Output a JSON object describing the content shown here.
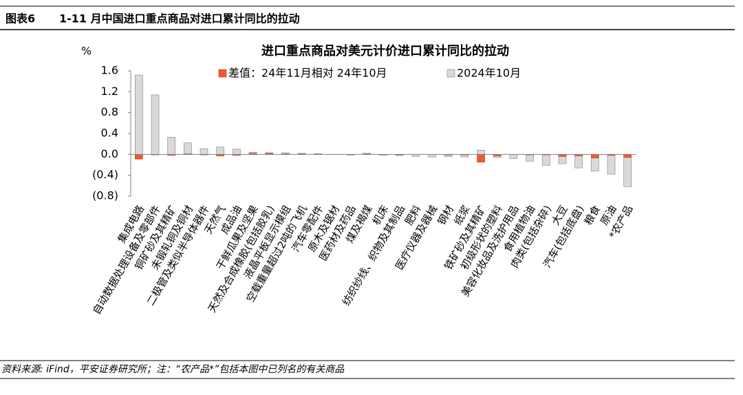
{
  "header": {
    "label": "图表6",
    "title": "1-11 月中国进口重点商品对进口累计同比的拉动"
  },
  "chart_data": {
    "type": "bar",
    "title": "进口重点商品对美元计价进口累计同比的拉动",
    "y_unit": "%",
    "categories": [
      "集成电路",
      "自动数据处理设备及零部件",
      "铜矿砂及其精矿",
      "未锻轧铜及铜材",
      "二极管及类似半导体器件",
      "天然气",
      "成品油",
      "干鲜瓜果及坚果",
      "天然及合成橡胶(包括胶乳)",
      "液晶平板显示模组",
      "空载重量超过2吨的飞机",
      "汽车零配件",
      "原木及锯材",
      "医药材及药品",
      "煤及褐煤",
      "机床",
      "纺织纱线、织物及其制品",
      "肥料",
      "医疗仪器及器械",
      "钢材",
      "纸浆",
      "铁矿砂及其精矿",
      "初级形状的塑料",
      "美容化妆品及洗护用品",
      "食用植物油",
      "肉类(包括杂碎)",
      "大豆",
      "汽车(包括底盘)",
      "粮食",
      "原油",
      "*农产品"
    ],
    "series": [
      {
        "name": "2024年10月",
        "color": "#d9d9d9",
        "values": [
          1.52,
          1.14,
          0.33,
          0.22,
          0.11,
          0.14,
          0.1,
          0.04,
          0.03,
          0.03,
          0.02,
          0.01,
          0.0,
          -0.01,
          0.02,
          -0.02,
          -0.02,
          -0.04,
          -0.05,
          -0.04,
          -0.05,
          0.08,
          -0.06,
          -0.08,
          -0.13,
          -0.21,
          -0.18,
          -0.26,
          -0.32,
          -0.38,
          -0.62
        ]
      },
      {
        "name": "差值：24年11月相对 24年10月",
        "color": "#ed5b2d",
        "values": [
          -0.09,
          -0.01,
          -0.02,
          0.01,
          -0.01,
          -0.03,
          -0.02,
          0.02,
          0.02,
          0.01,
          0.01,
          0.01,
          0.0,
          -0.01,
          0.01,
          0.0,
          -0.01,
          0.0,
          0.0,
          -0.01,
          -0.01,
          -0.15,
          -0.03,
          0.0,
          -0.01,
          -0.01,
          -0.04,
          -0.03,
          -0.07,
          -0.02,
          -0.06
        ]
      }
    ],
    "ylim": [
      -0.8,
      1.6
    ],
    "yticks": [
      1.6,
      1.2,
      0.8,
      0.4,
      {
        "value": 0,
        "label": "0.0"
      },
      {
        "value": -0.4,
        "label": "(0.4)"
      },
      {
        "value": -0.8,
        "label": "(0.8)"
      }
    ],
    "negative_tick_color": "#c00000"
  },
  "footer": "资料来源: iFind，平安证券研究所；注：“农产品*”包括本图中已列名的有关商品"
}
